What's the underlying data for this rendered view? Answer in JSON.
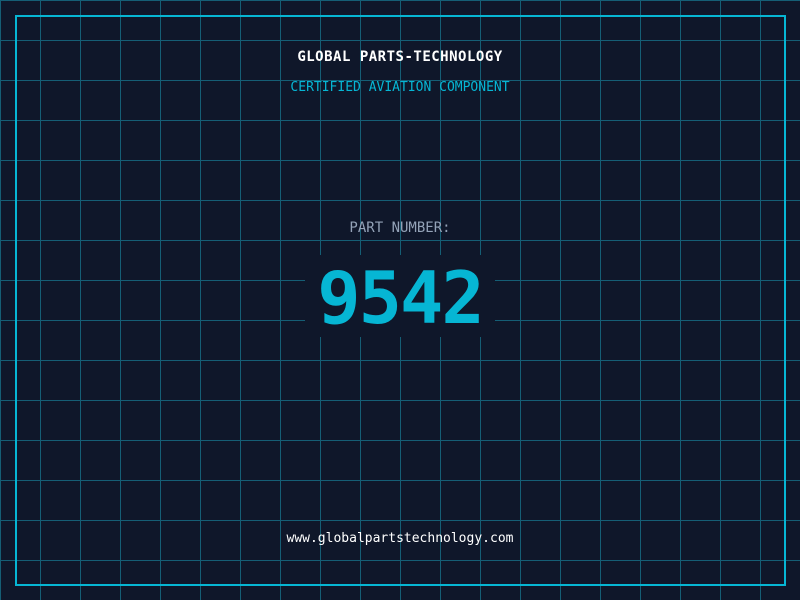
{
  "header": {
    "brand": "GLOBAL PARTS-TECHNOLOGY",
    "subtitle": "CERTIFIED AVIATION COMPONENT"
  },
  "part": {
    "label": "PART NUMBER:",
    "number": "9542"
  },
  "footer": {
    "url": "www.globalpartstechnology.com"
  },
  "colors": {
    "background": "#0f172a",
    "accent": "#06b6d4",
    "grid": "#155e75",
    "label": "#94a3b8"
  }
}
